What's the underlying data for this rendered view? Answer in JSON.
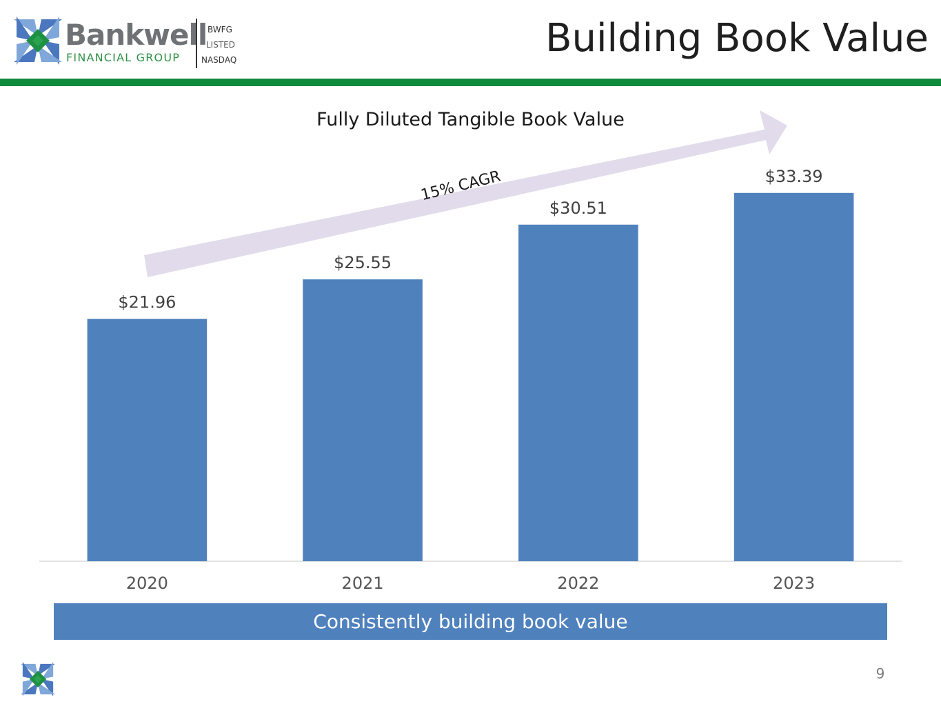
{
  "header": {
    "brand_name": "Bankwell",
    "brand_sub": "FINANCIAL GROUP",
    "ticker": "BWFG",
    "listed": "LISTED",
    "exchange": "NASDAQ",
    "title": "Building Book Value"
  },
  "colors": {
    "accent_green": "#0f8a3c",
    "bar_blue": "#4f81bd",
    "arrow_lavender": "#e1dbeb"
  },
  "icons": {
    "logo": "bankwell-star-icon",
    "arrow": "trend-arrow-icon"
  },
  "chart_data": {
    "type": "bar",
    "title": "Fully Diluted Tangible Book Value",
    "categories": [
      "2020",
      "2021",
      "2022",
      "2023"
    ],
    "values": [
      21.96,
      25.55,
      30.51,
      33.39
    ],
    "value_labels": [
      "$21.96",
      "$25.55",
      "$30.51",
      "$33.39"
    ],
    "xlabel": "",
    "ylabel": "",
    "grid": false,
    "annotation": "15% CAGR"
  },
  "banner": {
    "text": "Consistently building book value"
  },
  "footer": {
    "page_number": "9"
  }
}
